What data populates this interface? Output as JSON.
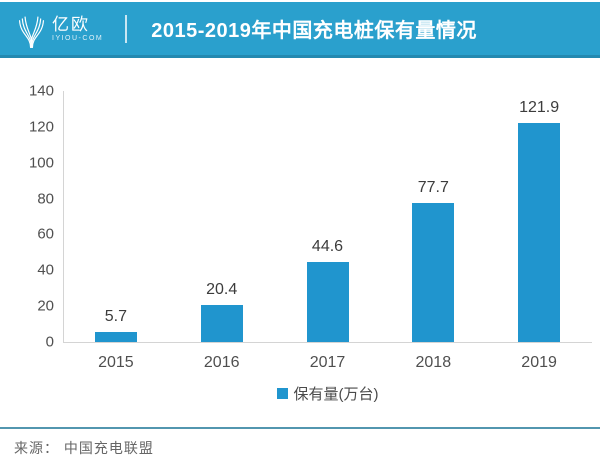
{
  "header": {
    "logo": {
      "name": "亿欧",
      "domain": "IYIOU-COM"
    },
    "title": "2015-2019年中国充电桩保有量情况",
    "colors": {
      "banner": "#2AA0CD"
    }
  },
  "chart_data": {
    "type": "bar",
    "title": "2015-2019年中国充电桩保有量情况",
    "categories": [
      "2015",
      "2016",
      "2017",
      "2018",
      "2019"
    ],
    "values": [
      5.7,
      20.4,
      44.6,
      77.7,
      121.9
    ],
    "series_name": "保有量(万台)",
    "xlabel": "",
    "ylabel": "",
    "ylim": [
      0,
      140
    ],
    "yticks": [
      0,
      20,
      40,
      60,
      80,
      100,
      120,
      140
    ],
    "grid": false,
    "legend_position": "bottom-center",
    "bar_color": "#2095CE"
  },
  "legend": {
    "label": "保有量(万台)"
  },
  "footer": {
    "source": "来源： 中国充电联盟"
  }
}
